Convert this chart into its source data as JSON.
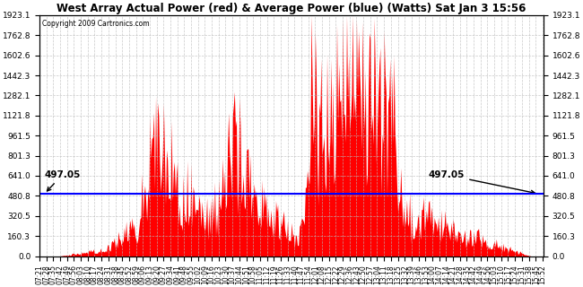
{
  "title": "West Array Actual Power (red) & Average Power (blue) (Watts) Sat Jan 3 15:56",
  "copyright": "Copyright 2009 Cartronics.com",
  "average_power": 497.05,
  "ymax": 1923.1,
  "ymin": 0.0,
  "yticks": [
    0.0,
    160.3,
    320.5,
    480.8,
    641.0,
    801.3,
    961.5,
    1121.8,
    1282.1,
    1442.3,
    1602.6,
    1762.8,
    1923.1
  ],
  "ytick_labels": [
    "0.0",
    "160.3",
    "320.5",
    "480.8",
    "641.0",
    "801.3",
    "961.5",
    "1121.8",
    "1282.1",
    "1442.3",
    "1602.6",
    "1762.8",
    "1923.1"
  ],
  "bg_color": "#ffffff",
  "fill_color": "#ff0000",
  "line_color": "#0000ff",
  "grid_color": "#bbbbbb",
  "xlabel_rotation": 90,
  "x_start_hour": 7,
  "x_start_min": 21,
  "x_end_hour": 15,
  "x_end_min": 53,
  "x_interval_min": 7
}
